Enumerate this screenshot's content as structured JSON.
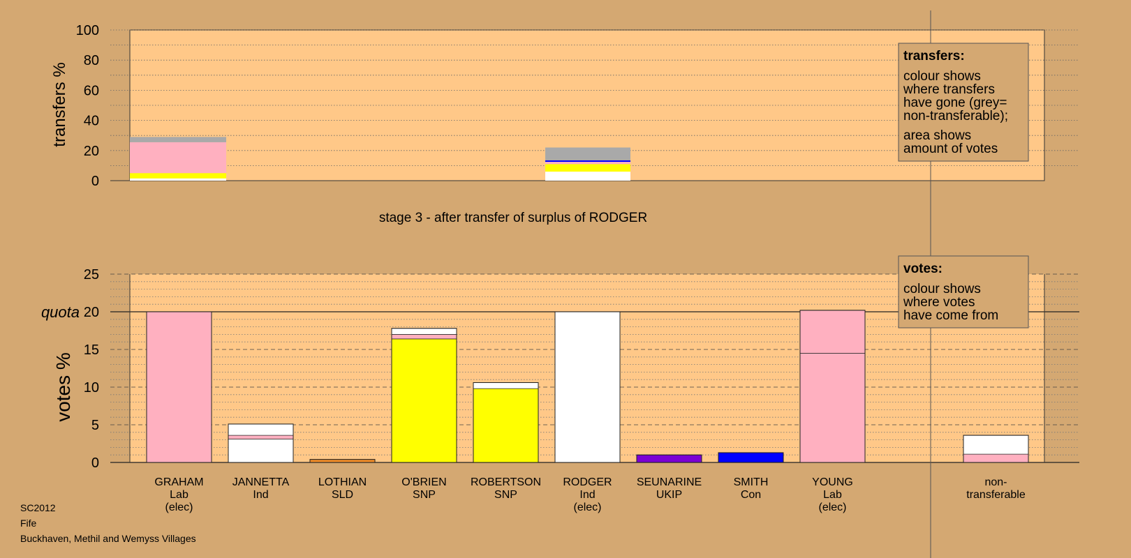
{
  "chart_data": [
    {
      "type": "bar",
      "stacked": true,
      "title": "",
      "ylabel": "transfers %",
      "ylim": [
        0,
        100
      ],
      "yticks": [
        0,
        20,
        40,
        60,
        80,
        100
      ],
      "categories": [
        "GRAHAM",
        "RODGER"
      ],
      "bars": [
        {
          "category": "GRAHAM",
          "segments": [
            {
              "value": 1.5,
              "color": "#ffffff"
            },
            {
              "value": 3.5,
              "color": "#ffff00"
            },
            {
              "value": 20.5,
              "color": "#ffb0c0"
            },
            {
              "value": 3.5,
              "color": "#a9a9a9"
            }
          ]
        },
        {
          "category": "RODGER",
          "segments": [
            {
              "value": 6,
              "color": "#ffffff"
            },
            {
              "value": 5,
              "color": "#ffff00"
            },
            {
              "value": 1.5,
              "color": "#ffb0c0"
            },
            {
              "value": 1,
              "color": "#0000ff"
            },
            {
              "value": 8.5,
              "color": "#a9a9a9"
            }
          ]
        }
      ],
      "legend_box": {
        "heading": "transfers:",
        "lines1": [
          "colour shows",
          "where transfers",
          "have gone (grey=",
          "non-transferable);"
        ],
        "lines2": [
          "area shows",
          "amount of votes"
        ]
      }
    },
    {
      "type": "bar",
      "stacked": true,
      "title": "stage 3 - after transfer of surplus of RODGER",
      "ylabel": "votes %",
      "ylim": [
        0,
        25
      ],
      "yticks": [
        0,
        5,
        10,
        15,
        20,
        25
      ],
      "quota": {
        "value": 20,
        "label": "quota"
      },
      "categories": [
        [
          "GRAHAM",
          "Lab",
          "(elec)"
        ],
        [
          "JANNETTA",
          "Ind"
        ],
        [
          "LOTHIAN",
          "SLD"
        ],
        [
          "O'BRIEN",
          "SNP"
        ],
        [
          "ROBERTSON",
          "SNP"
        ],
        [
          "RODGER",
          "Ind",
          "(elec)"
        ],
        [
          "SEUNARINE",
          "UKIP"
        ],
        [
          "SMITH",
          "Con"
        ],
        [
          "YOUNG",
          "Lab",
          "(elec)"
        ],
        [
          "non-",
          "transferable"
        ]
      ],
      "bars": [
        {
          "segments": [
            {
              "value": 20,
              "color": "#ffb0c0"
            }
          ]
        },
        {
          "segments": [
            {
              "value": 3.1,
              "color": "#ffffff"
            },
            {
              "value": 0.5,
              "color": "#ffb0c0"
            },
            {
              "value": 1.5,
              "color": "#ffffff"
            }
          ]
        },
        {
          "segments": [
            {
              "value": 0.4,
              "color": "#f08c28"
            }
          ]
        },
        {
          "segments": [
            {
              "value": 16.4,
              "color": "#ffff00"
            },
            {
              "value": 0.6,
              "color": "#ffb0c0"
            },
            {
              "value": 0.8,
              "color": "#ffffff"
            }
          ]
        },
        {
          "segments": [
            {
              "value": 9.8,
              "color": "#ffff00"
            },
            {
              "value": 0.8,
              "color": "#ffffff"
            }
          ]
        },
        {
          "segments": [
            {
              "value": 20,
              "color": "#ffffff"
            }
          ]
        },
        {
          "segments": [
            {
              "value": 1,
              "color": "#7b00d4"
            }
          ]
        },
        {
          "segments": [
            {
              "value": 1.3,
              "color": "#0000ff"
            }
          ]
        },
        {
          "segments": [
            {
              "value": 14.5,
              "color": "#ffb0c0"
            },
            {
              "value": 5.7,
              "color": "#ffb0c0"
            }
          ]
        },
        {
          "segments": [
            {
              "value": 1.1,
              "color": "#ffb0c0"
            },
            {
              "value": 2.5,
              "color": "#ffffff"
            }
          ]
        }
      ],
      "legend_box": {
        "heading": "votes:",
        "lines1": [
          "colour shows",
          "where votes",
          "have come from"
        ]
      }
    }
  ],
  "footer": {
    "line1": "SC2012",
    "line2": "Fife",
    "line3": "Buckhaven, Methil and Wemyss Villages"
  },
  "colors": {
    "background": "#d4a872",
    "plot_area": "#ffc888",
    "legend_fill": "#d4a872"
  }
}
